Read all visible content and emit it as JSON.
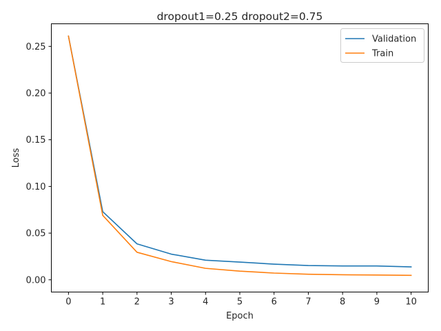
{
  "chart_data": {
    "type": "line",
    "title": "dropout1=0.25 dropout2=0.75",
    "xlabel": "Epoch",
    "ylabel": "Loss",
    "x": [
      0,
      1,
      2,
      3,
      4,
      5,
      6,
      7,
      8,
      9,
      10
    ],
    "xticks": [
      "0",
      "1",
      "2",
      "3",
      "4",
      "5",
      "6",
      "7",
      "8",
      "9",
      "10"
    ],
    "yticks": [
      "0.00",
      "0.05",
      "0.10",
      "0.15",
      "0.20",
      "0.25"
    ],
    "ytick_values": [
      0,
      0.05,
      0.1,
      0.15,
      0.2,
      0.25
    ],
    "xlim": [
      -0.5,
      10.5
    ],
    "ylim": [
      -0.0131,
      0.2742
    ],
    "grid": false,
    "legend_position": "top-right",
    "series": [
      {
        "name": "Validation",
        "color": "#1f77b4",
        "values": [
          0.261,
          0.073,
          0.0385,
          0.0275,
          0.021,
          0.019,
          0.0168,
          0.0153,
          0.0148,
          0.0148,
          0.0138
        ]
      },
      {
        "name": "Train",
        "color": "#ff7f0e",
        "values": [
          0.261,
          0.069,
          0.0295,
          0.0195,
          0.0123,
          0.0093,
          0.0072,
          0.006,
          0.0054,
          0.0051,
          0.0048
        ]
      }
    ]
  }
}
